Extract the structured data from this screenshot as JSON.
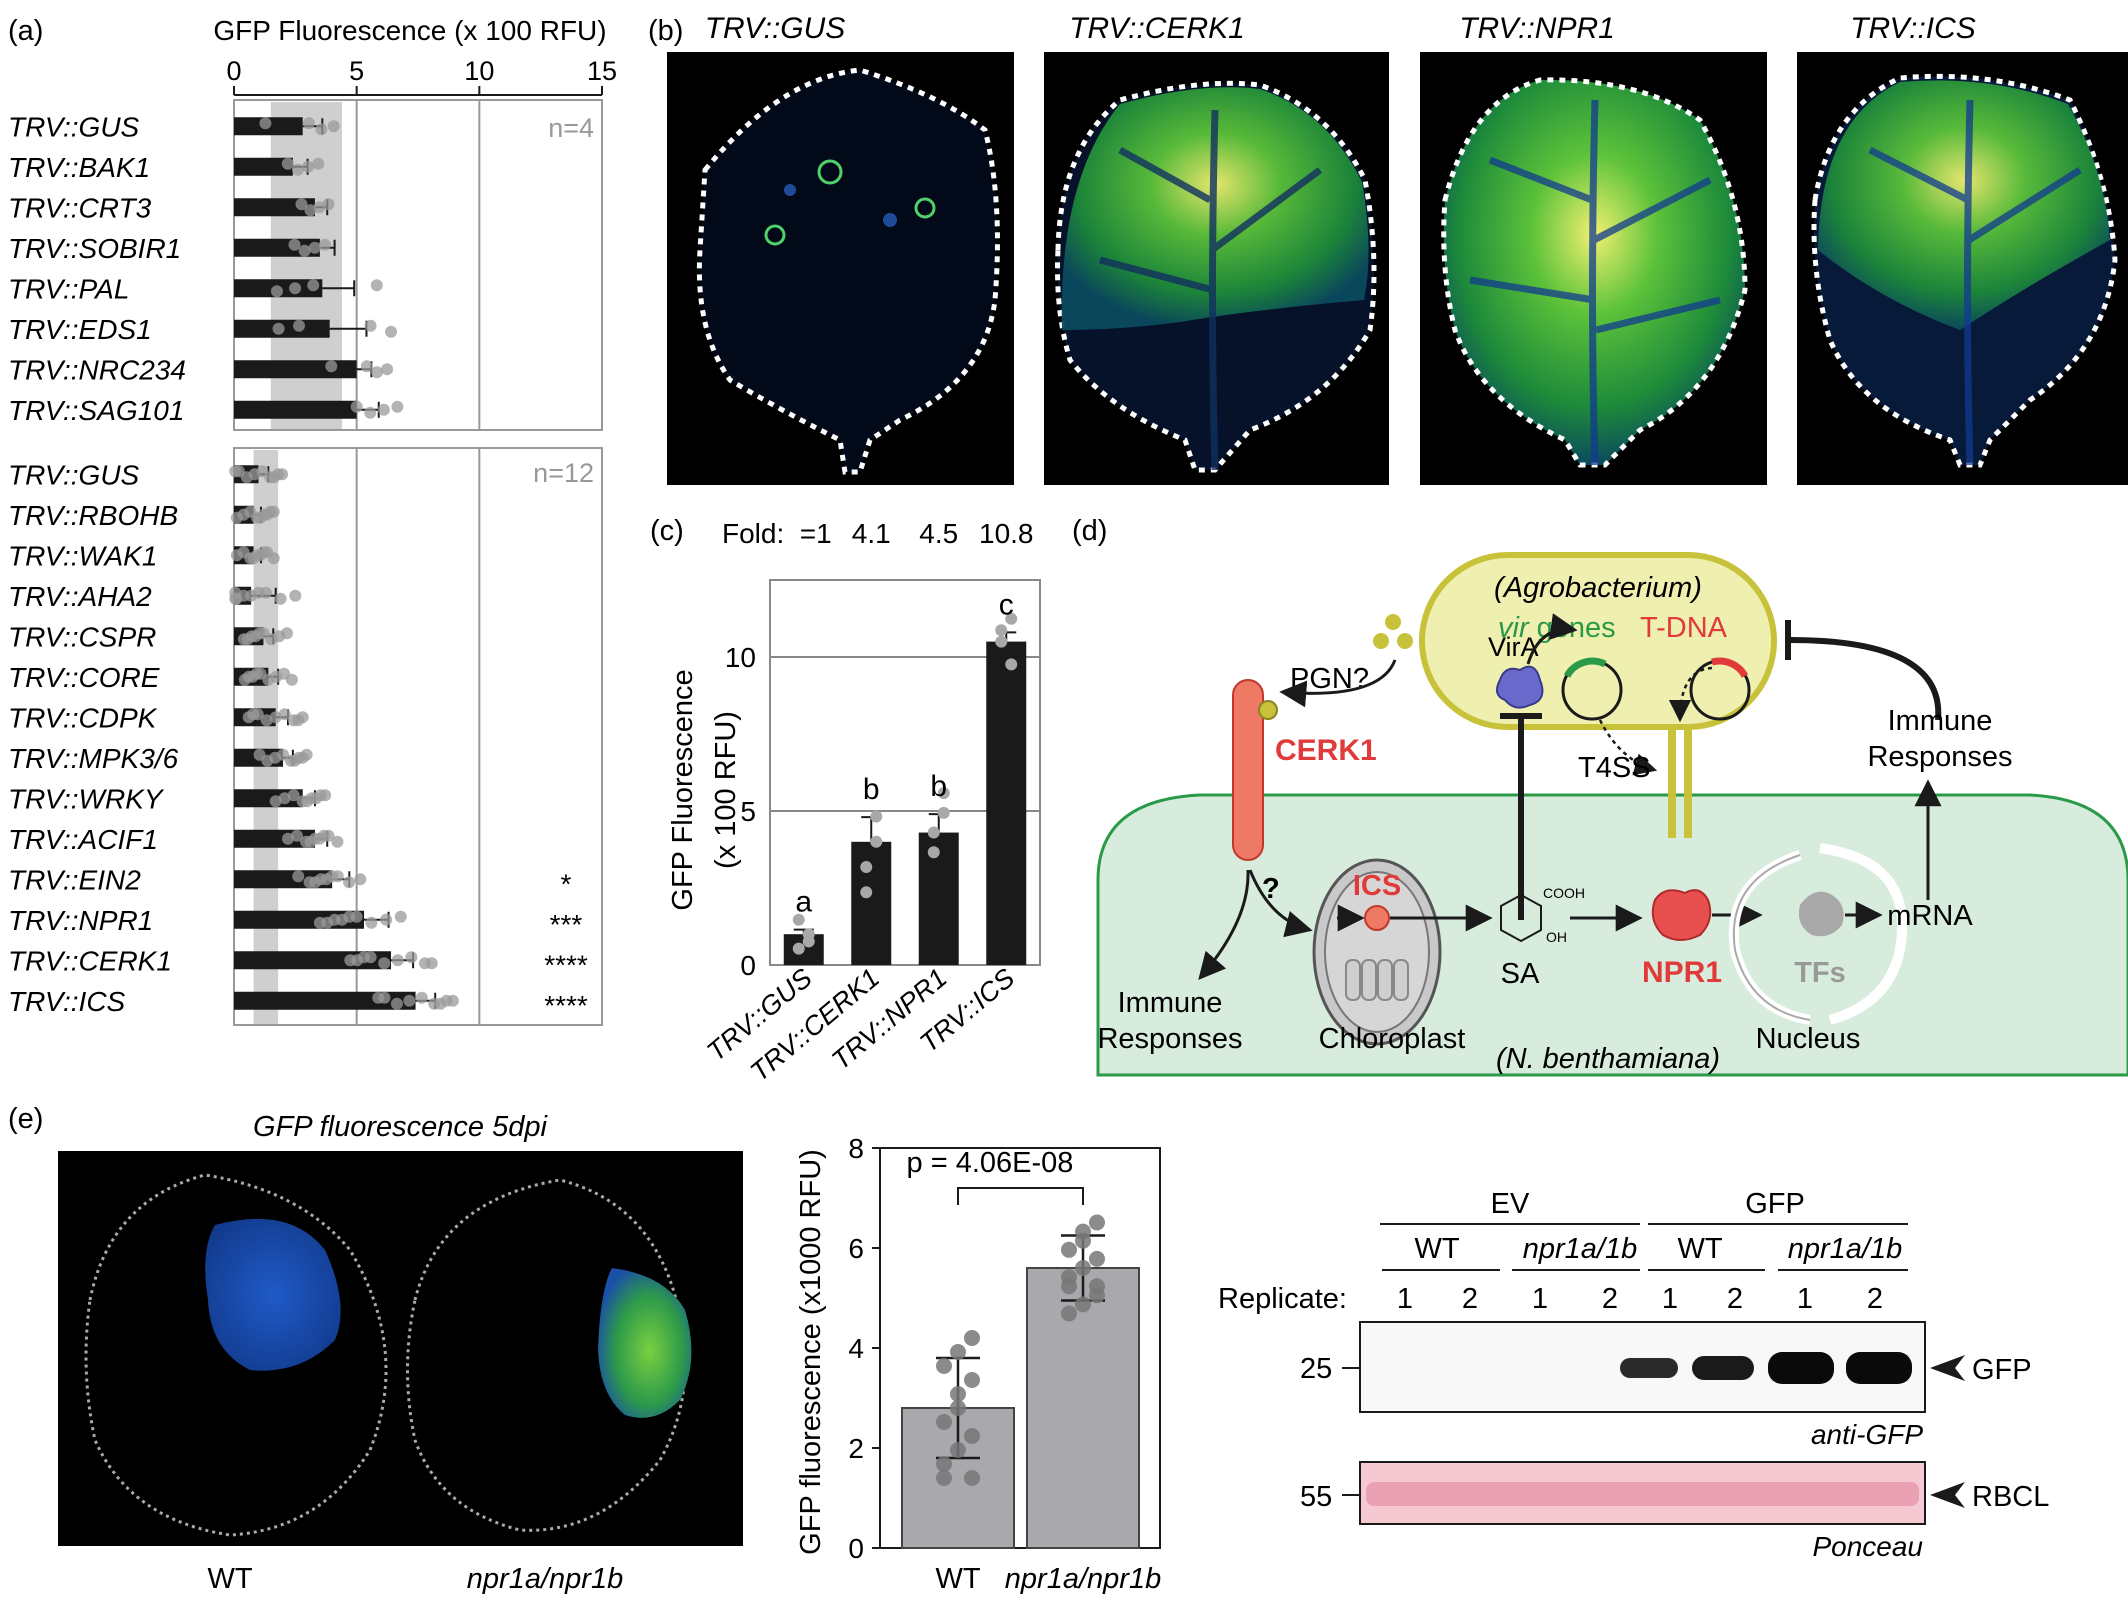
{
  "panel_labels": {
    "a": "(a)",
    "b": "(b)",
    "c": "(c)",
    "d": "(d)",
    "e": "(e)"
  },
  "panel_a": {
    "axis_title": "GFP Fluorescence (x 100 RFU)",
    "ticks": [
      "0",
      "5",
      "10",
      "15"
    ],
    "top_n": "n=4",
    "bottom_n": "n=12",
    "top": [
      {
        "label": "TRV::GUS",
        "value": 2.8,
        "err": 0.8,
        "sig": ""
      },
      {
        "label": "TRV::BAK1",
        "value": 2.4,
        "err": 0.6,
        "sig": ""
      },
      {
        "label": "TRV::CRT3",
        "value": 3.3,
        "err": 0.5,
        "sig": ""
      },
      {
        "label": "TRV::SOBIR1",
        "value": 3.5,
        "err": 0.6,
        "sig": ""
      },
      {
        "label": "TRV::PAL",
        "value": 3.6,
        "err": 1.3,
        "sig": ""
      },
      {
        "label": "TRV::EDS1",
        "value": 3.9,
        "err": 1.5,
        "sig": ""
      },
      {
        "label": "TRV::NRC234",
        "value": 5.0,
        "err": 0.6,
        "sig": ""
      },
      {
        "label": "TRV::SAG101",
        "value": 5.0,
        "err": 0.9,
        "sig": ""
      }
    ],
    "bottom": [
      {
        "label": "TRV::GUS",
        "value": 1.0,
        "err": 0.4,
        "sig": ""
      },
      {
        "label": "TRV::RBOHB",
        "value": 0.8,
        "err": 0.3,
        "sig": ""
      },
      {
        "label": "TRV::WAK1",
        "value": 0.8,
        "err": 0.3,
        "sig": ""
      },
      {
        "label": "TRV::AHA2",
        "value": 0.7,
        "err": 1.0,
        "sig": ""
      },
      {
        "label": "TRV::CSPR",
        "value": 1.2,
        "err": 0.4,
        "sig": ""
      },
      {
        "label": "TRV::CORE",
        "value": 1.4,
        "err": 0.4,
        "sig": ""
      },
      {
        "label": "TRV::CDPK",
        "value": 1.7,
        "err": 0.5,
        "sig": ""
      },
      {
        "label": "TRV::MPK3/6",
        "value": 2.0,
        "err": 0.4,
        "sig": ""
      },
      {
        "label": "TRV::WRKY",
        "value": 2.8,
        "err": 0.5,
        "sig": ""
      },
      {
        "label": "TRV::ACIF1",
        "value": 3.3,
        "err": 0.5,
        "sig": ""
      },
      {
        "label": "TRV::EIN2",
        "value": 4.0,
        "err": 0.7,
        "sig": "*"
      },
      {
        "label": "TRV::NPR1",
        "value": 5.3,
        "err": 1.0,
        "sig": "***"
      },
      {
        "label": "TRV::CERK1",
        "value": 6.4,
        "err": 0.9,
        "sig": "****"
      },
      {
        "label": "TRV::ICS",
        "value": 7.4,
        "err": 0.8,
        "sig": "****"
      }
    ]
  },
  "panel_b": {
    "titles": [
      "TRV::GUS",
      "TRV::CERK1",
      "TRV::NPR1",
      "TRV::ICS"
    ]
  },
  "chart_data": {
    "type": "bar",
    "title": "",
    "fold_label": "Fold:",
    "categories": [
      "TRV::GUS",
      "TRV::CERK1",
      "TRV::NPR1",
      "TRV::ICS"
    ],
    "values": [
      1.0,
      4.0,
      4.3,
      10.5
    ],
    "errors": [
      0.15,
      0.8,
      0.6,
      0.3
    ],
    "folds": [
      "=1",
      "4.1",
      "4.5",
      "10.8"
    ],
    "letters": [
      "a",
      "b",
      "b",
      "c"
    ],
    "ylabel": "GFP Fluorescence",
    "ylabel2": "(x 100 RFU)",
    "yticks": [
      "0",
      "5",
      "10"
    ],
    "ylim": [
      0,
      12.5
    ]
  },
  "panel_d": {
    "agro": "(Agrobacterium)",
    "vir": "vir",
    "genes": " genes",
    "tdna": "T-DNA",
    "pgn": "PGN?",
    "vira": "VirA",
    "t4ss": "T4SS",
    "cerk1": "CERK1",
    "q": "?",
    "immune1": "Immune",
    "responses1": "Responses",
    "immune2": "Immune",
    "responses2": "Responses",
    "ics": "ICS",
    "chloroplast": "Chloroplast",
    "sa": "SA",
    "cooh": "COOH",
    "oh": "OH",
    "npr1": "NPR1",
    "tfs": "TFs",
    "nucleus": "Nucleus",
    "mrna": "mRNA",
    "nbenth": "(N. benthamiana)"
  },
  "panel_e": {
    "image_title": "GFP fluorescence 5dpi",
    "wt": "WT",
    "mut": "npr1a/npr1b",
    "bar": {
      "ylabel": "GFP fluorescence (x1000 RFU)",
      "p": "p = 4.06E-08",
      "yticks": [
        "0",
        "2",
        "4",
        "6",
        "8"
      ],
      "categories": [
        "WT",
        "npr1a/npr1b"
      ],
      "values": [
        2.8,
        5.6
      ],
      "sd": [
        1.0,
        0.65
      ]
    },
    "blot": {
      "ev": "EV",
      "gfp_group": "GFP",
      "wt1": "WT",
      "mut1": "npr1a/1b",
      "wt2": "WT",
      "mut2": "npr1a/1b",
      "replicate": "Replicate:",
      "reps": [
        "1",
        "2",
        "1",
        "2",
        "1",
        "2",
        "1",
        "2"
      ],
      "mw25": "25",
      "mw55": "55",
      "gfp": "GFP",
      "rbcl": "RBCL",
      "anti": "anti-GFP",
      "ponceau": "Ponceau"
    }
  }
}
